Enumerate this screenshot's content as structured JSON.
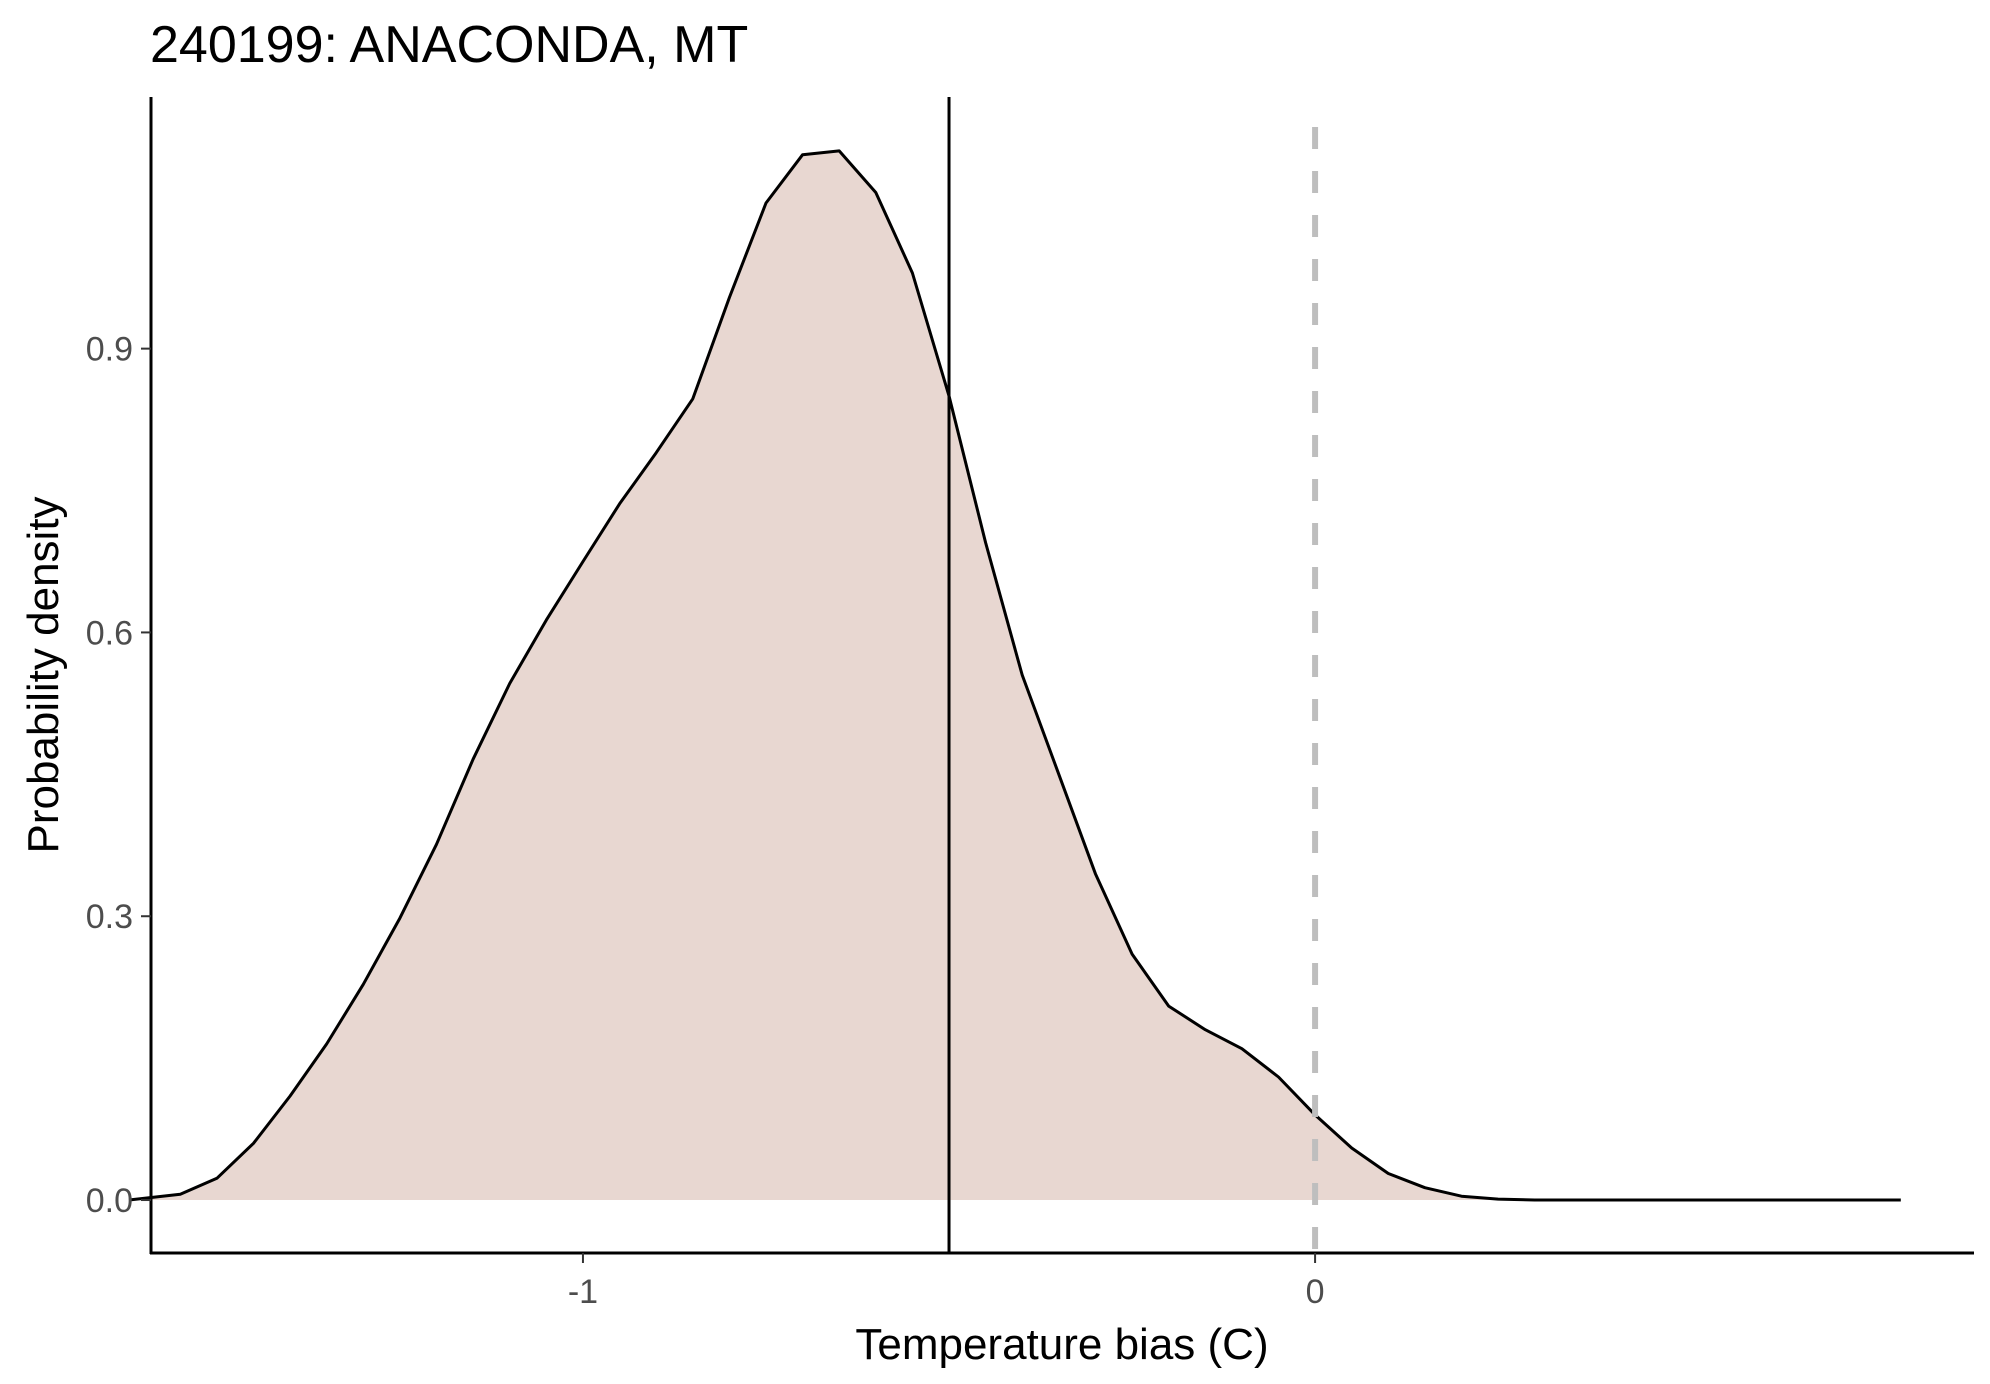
{
  "chart_data": {
    "type": "area",
    "title": "240199: ANACONDA, MT",
    "xlabel": "Temperature bias (C)",
    "ylabel": "Probability density",
    "xlim": [
      -1.59,
      0.9
    ],
    "ylim": [
      -0.056,
      1.166
    ],
    "x_ticks": [
      {
        "value": -1,
        "label": "-1"
      },
      {
        "value": 0,
        "label": "0"
      }
    ],
    "y_ticks": [
      {
        "value": 0.0,
        "label": "0.0"
      },
      {
        "value": 0.3,
        "label": "0.3"
      },
      {
        "value": 0.6,
        "label": "0.6"
      },
      {
        "value": 0.9,
        "label": "0.9"
      }
    ],
    "grid": false,
    "legend": "none",
    "series": [
      {
        "x": [
          -1.62,
          -1.55,
          -1.5,
          -1.45,
          -1.4,
          -1.35,
          -1.3,
          -1.25,
          -1.2,
          -1.15,
          -1.1,
          -1.05,
          -1.0,
          -0.95,
          -0.9,
          -0.85,
          -0.8,
          -0.75,
          -0.7,
          -0.65,
          -0.6,
          -0.55,
          -0.5,
          -0.45,
          -0.4,
          -0.35,
          -0.3,
          -0.25,
          -0.2,
          -0.15,
          -0.1,
          -0.05,
          0.0,
          0.05,
          0.1,
          0.15,
          0.2,
          0.25,
          0.3,
          0.35,
          0.4,
          0.45,
          0.5,
          0.55,
          0.6,
          0.65,
          0.7,
          0.75,
          0.8
        ],
        "y": [
          0.0,
          0.006,
          0.023,
          0.06,
          0.11,
          0.165,
          0.228,
          0.298,
          0.376,
          0.466,
          0.546,
          0.613,
          0.675,
          0.736,
          0.79,
          0.847,
          0.954,
          1.054,
          1.105,
          1.109,
          1.065,
          0.98,
          0.85,
          0.695,
          0.555,
          0.45,
          0.345,
          0.26,
          0.205,
          0.18,
          0.16,
          0.13,
          0.09,
          0.055,
          0.028,
          0.013,
          0.004,
          0.001,
          0.0,
          0.0,
          0.0,
          0.0,
          0.0,
          0.0,
          0.0,
          0.0,
          0.0,
          0.0,
          0.0
        ],
        "fill": "#e8d7d1",
        "line_color": "#000000"
      }
    ],
    "reference_lines": [
      {
        "axis": "x",
        "value": -0.5,
        "style": "solid",
        "color": "#000000"
      },
      {
        "axis": "x",
        "value": 0.0,
        "style": "dashed",
        "color": "#bebebe"
      }
    ]
  }
}
